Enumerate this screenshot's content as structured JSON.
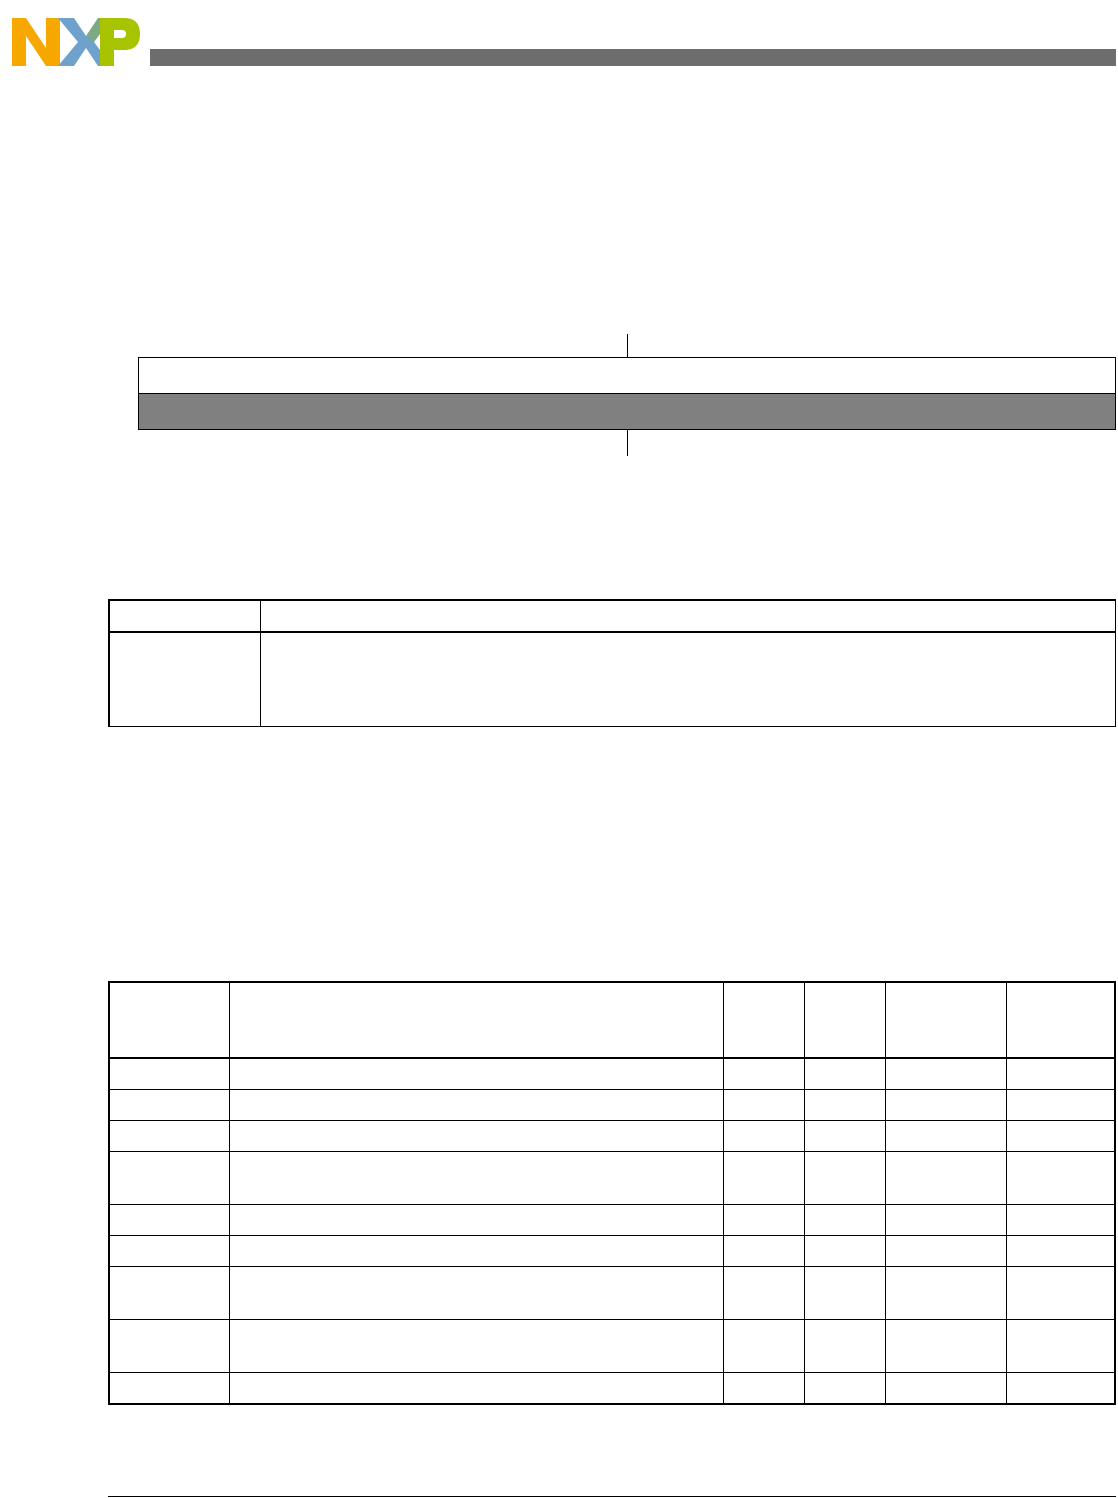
{
  "header": {
    "logo": {
      "text": "NXP",
      "colors": [
        "#f7a800",
        "#6fa1cd",
        "#a8c300"
      ]
    },
    "bar_color": "#6d6d6d"
  },
  "register_diagram": {
    "upper_row_fill": "#ffffff",
    "lower_row_fill": "#808080"
  },
  "field_table": {
    "headers": [
      "",
      ""
    ],
    "rows": [
      [
        "",
        ""
      ]
    ]
  },
  "signal_table": {
    "headers": [
      "",
      "",
      "",
      "",
      "",
      ""
    ],
    "rows": [
      [
        "",
        "",
        "",
        "",
        "",
        ""
      ],
      [
        "",
        "",
        "",
        "",
        "",
        ""
      ],
      [
        "",
        "",
        "",
        "",
        "",
        ""
      ],
      [
        "",
        "",
        "",
        "",
        "",
        ""
      ],
      [
        "",
        "",
        "",
        "",
        "",
        ""
      ],
      [
        "",
        "",
        "",
        "",
        "",
        ""
      ],
      [
        "",
        "",
        "",
        "",
        "",
        ""
      ],
      [
        "",
        "",
        "",
        "",
        "",
        ""
      ],
      [
        "",
        "",
        "",
        "",
        "",
        ""
      ]
    ]
  }
}
